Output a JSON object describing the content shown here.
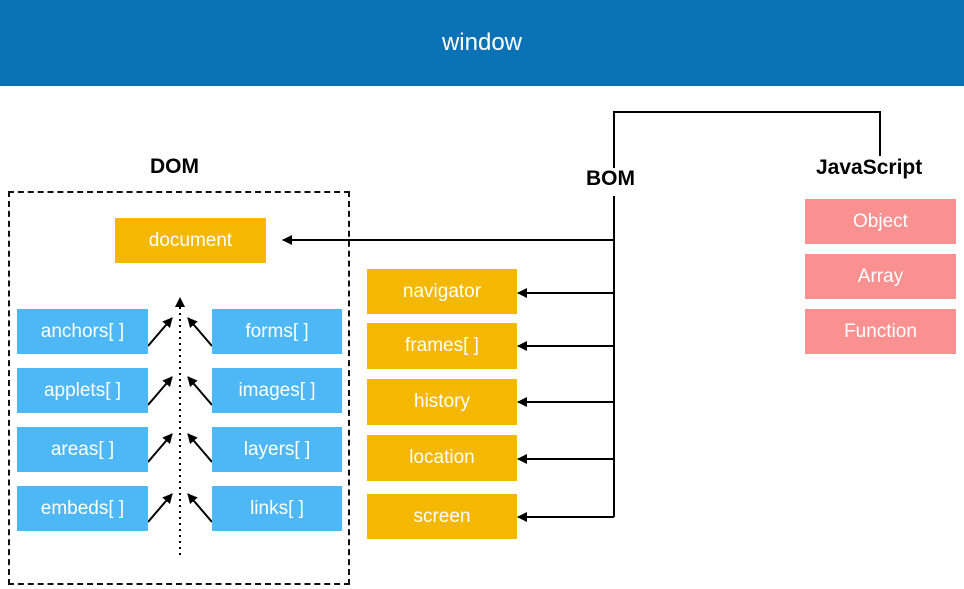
{
  "window": {
    "label": "window"
  },
  "dom": {
    "title": "DOM",
    "document": "document",
    "left_collections": [
      "anchors[ ]",
      "applets[ ]",
      "areas[ ]",
      "embeds[ ]"
    ],
    "right_collections": [
      "forms[ ]",
      "images[ ]",
      "layers[ ]",
      "links[ ]"
    ]
  },
  "bom": {
    "title": "BOM",
    "objects": [
      "navigator",
      "frames[ ]",
      "history",
      "location",
      "screen"
    ]
  },
  "javascript": {
    "title": "JavaScript",
    "objects": [
      "Object",
      "Array",
      "Function"
    ]
  },
  "colors": {
    "window_banner": "#0b72b5",
    "dom_collection": "#4db8f5",
    "document_and_bom": "#f5b800",
    "javascript": "#f99191"
  }
}
